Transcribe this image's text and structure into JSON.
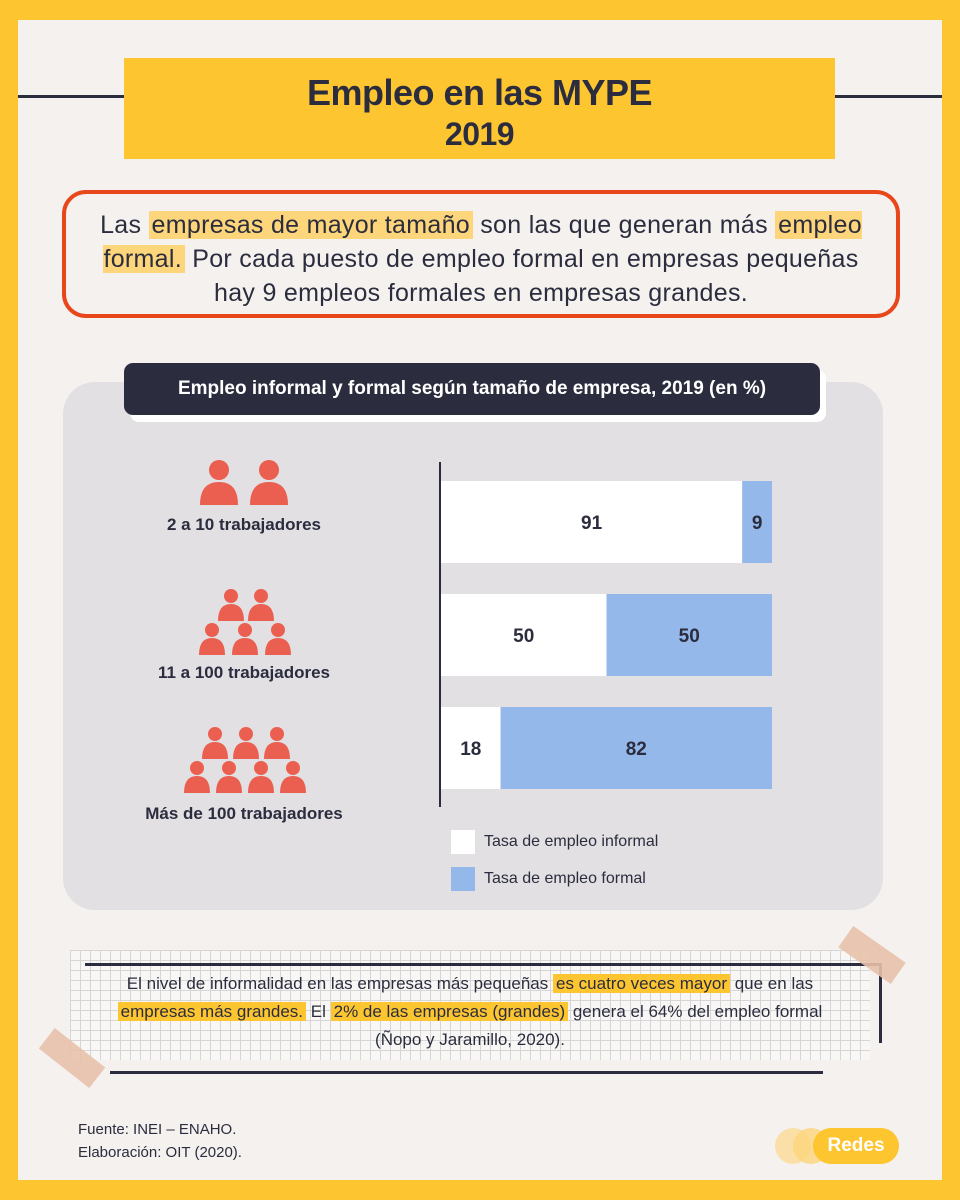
{
  "header": {
    "title": "Empleo en las MYPE",
    "year": "2019"
  },
  "callout": {
    "p1": "Las ",
    "h1": "empresas de mayor tamaño",
    "p2": " son las que generan más ",
    "h2": "empleo formal.",
    "p3": " Por cada puesto de empleo formal en empresas pequeñas hay 9 empleos formales en empresas grandes."
  },
  "chart_tab": {
    "title": "Empleo informal y formal según tamaño de empresa, 2019 (en %)"
  },
  "groups": {
    "g0": "2 a 10 trabajadores",
    "g1": "11 a 100 trabajadores",
    "g2": "Más de 100 trabajadores"
  },
  "legend": {
    "informal": "Tasa de empleo informal",
    "formal": "Tasa de empleo formal"
  },
  "note": {
    "p1": "El nivel de informalidad en las empresas más pequeñas ",
    "h1": "es cuatro veces mayor",
    "p2": " que en las ",
    "h2": "empresas más grandes.",
    "p3": " El ",
    "h3": "2% de las empresas (grandes)",
    "p4": " genera el 64% del empleo formal (Ñopo y Jaramillo, 2020)."
  },
  "source": {
    "line1": "Fuente: INEI – ENAHO.",
    "line2": "Elaboración: OIT (2020)."
  },
  "logo": {
    "text": "Redes"
  },
  "colors": {
    "accent_yellow": "#fdc530",
    "informal": "#ffffff",
    "formal": "#94b8ea",
    "person_icon": "#ea5f4f",
    "dark": "#2b2d3e",
    "callout_border": "#e8471c"
  },
  "chart_data": {
    "type": "bar",
    "orientation": "horizontal",
    "stacked": true,
    "title": "Empleo informal y formal según tamaño de empresa, 2019 (en %)",
    "categories": [
      "2 a 10 trabajadores",
      "11 a 100 trabajadores",
      "Más de 100 trabajadores"
    ],
    "series": [
      {
        "name": "Tasa de empleo informal",
        "values": [
          91,
          50,
          18
        ],
        "color": "#ffffff"
      },
      {
        "name": "Tasa de empleo formal",
        "values": [
          9,
          50,
          82
        ],
        "color": "#94b8ea"
      }
    ],
    "xlim": [
      0,
      100
    ],
    "grid": false,
    "legend_position": "bottom"
  }
}
